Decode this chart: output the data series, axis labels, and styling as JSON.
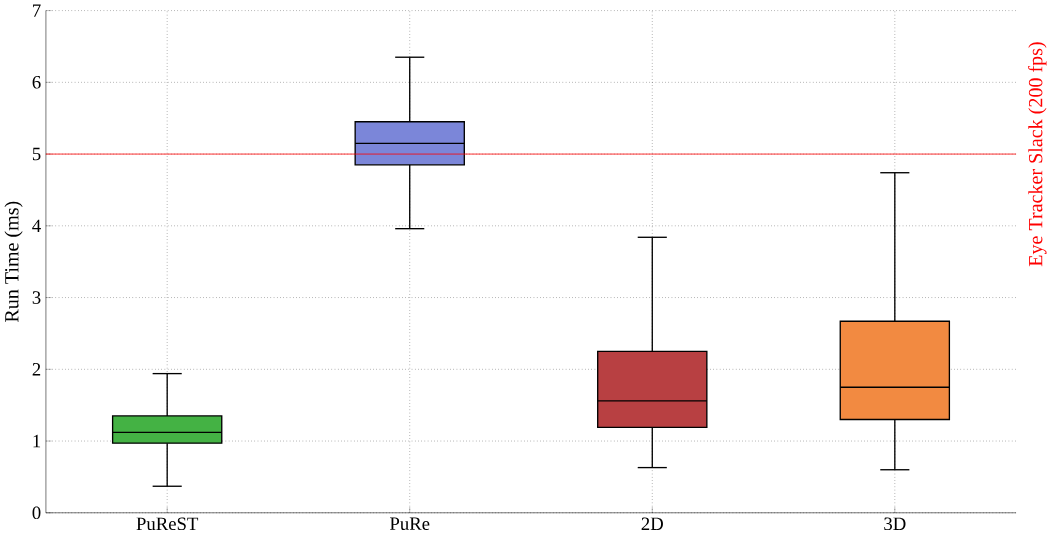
{
  "chart_data": {
    "type": "box",
    "ylabel": "Run Time (ms)",
    "categories": [
      "PuReST",
      "PuRe",
      "2D",
      "3D"
    ],
    "boxes": [
      {
        "low": 0.37,
        "q1": 0.97,
        "median": 1.12,
        "q3": 1.35,
        "high": 1.94
      },
      {
        "low": 3.96,
        "q1": 4.85,
        "median": 5.15,
        "q3": 5.45,
        "high": 6.35
      },
      {
        "low": 0.63,
        "q1": 1.19,
        "median": 1.56,
        "q3": 2.25,
        "high": 3.84
      },
      {
        "low": 0.6,
        "q1": 1.3,
        "median": 1.75,
        "q3": 2.67,
        "high": 4.74
      }
    ],
    "colors": [
      "#44b244",
      "#7b86d9",
      "#b84042",
      "#f28a41"
    ],
    "ylim": [
      0,
      7
    ],
    "yticks": [
      0,
      1,
      2,
      3,
      4,
      5,
      6,
      7
    ],
    "grid": true,
    "ref_lines": [
      {
        "axis": "y",
        "value": 5,
        "label": "Eye Tracker Slack (200 fps)",
        "color": "#ff0000"
      }
    ]
  }
}
